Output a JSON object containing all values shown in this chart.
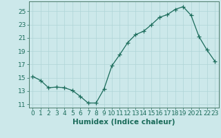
{
  "x": [
    0,
    1,
    2,
    3,
    4,
    5,
    6,
    7,
    8,
    9,
    10,
    11,
    12,
    13,
    14,
    15,
    16,
    17,
    18,
    19,
    20,
    21,
    22,
    23
  ],
  "y": [
    15.2,
    14.6,
    13.5,
    13.6,
    13.5,
    13.1,
    12.2,
    11.2,
    11.2,
    13.3,
    16.8,
    18.5,
    20.3,
    21.5,
    22.0,
    23.0,
    24.1,
    24.5,
    25.3,
    25.7,
    24.4,
    21.2,
    19.2,
    17.5
  ],
  "line_color": "#1a6b5a",
  "marker": "+",
  "marker_size": 4,
  "bg_color": "#cce8ea",
  "grid_color": "#afd4d6",
  "xlabel": "Humidex (Indice chaleur)",
  "xlim": [
    -0.5,
    23.5
  ],
  "ylim": [
    10.5,
    26.5
  ],
  "yticks": [
    11,
    13,
    15,
    17,
    19,
    21,
    23,
    25
  ],
  "xticks": [
    0,
    1,
    2,
    3,
    4,
    5,
    6,
    7,
    8,
    9,
    10,
    11,
    12,
    13,
    14,
    15,
    16,
    17,
    18,
    19,
    20,
    21,
    22,
    23
  ],
  "font_color": "#1a6b5a",
  "xlabel_fontsize": 7.5,
  "tick_fontsize": 6.5,
  "axis_color": "#4a7a6a"
}
